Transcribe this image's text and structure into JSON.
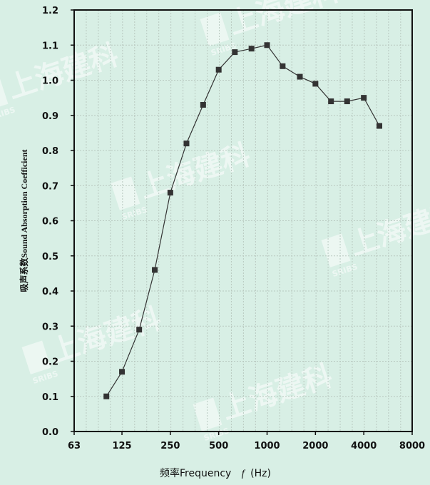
{
  "watermark": {
    "text": "上海建科",
    "sub": "SRIBS"
  },
  "chart_data": {
    "type": "line",
    "title": "",
    "xlabel_prefix": "频率Frequency",
    "xlabel_var": "f",
    "xlabel_unit": "(Hz)",
    "ylabel": "吸声系数Sound Absorption Coefficient",
    "x_scale": "log2",
    "xlim": [
      63,
      8000
    ],
    "ylim": [
      0.0,
      1.2
    ],
    "x_ticks": [
      63,
      125,
      250,
      500,
      1000,
      2000,
      4000,
      8000
    ],
    "x_tick_labels": [
      "63",
      "125",
      "250",
      "500",
      "1000",
      "2000",
      "4000",
      "8000"
    ],
    "y_ticks": [
      0.0,
      0.1,
      0.2,
      0.3,
      0.4,
      0.5,
      0.6,
      0.7,
      0.8,
      0.9,
      1.0,
      1.1,
      1.2
    ],
    "y_tick_labels": [
      "0.0",
      "0.1",
      "0.2",
      "0.3",
      "0.4",
      "0.5",
      "0.6",
      "0.7",
      "0.8",
      "0.9",
      "1.0",
      "1.1",
      "1.2"
    ],
    "grid": true,
    "marker": "square",
    "line_color": "#333333",
    "background_color": "#d8efe5",
    "series": [
      {
        "x": [
          100,
          125,
          160,
          200,
          250,
          315,
          400,
          500,
          630,
          800,
          1000,
          1250,
          1600,
          2000,
          2500,
          3150,
          4000,
          5000
        ],
        "y": [
          0.1,
          0.17,
          0.29,
          0.46,
          0.68,
          0.82,
          0.93,
          1.03,
          1.08,
          1.09,
          1.1,
          1.04,
          1.01,
          0.99,
          0.94,
          0.94,
          0.95,
          0.87
        ]
      }
    ]
  }
}
